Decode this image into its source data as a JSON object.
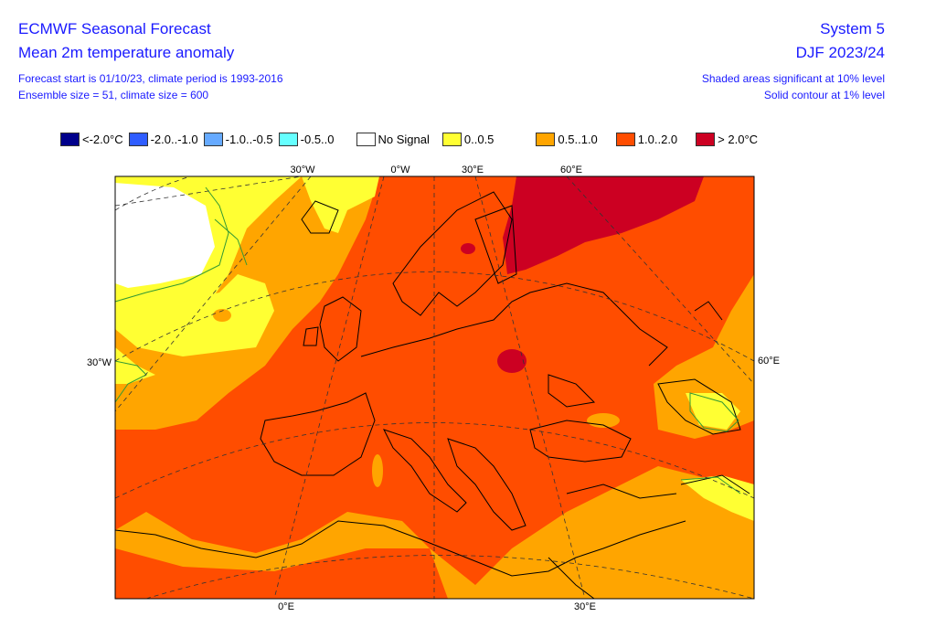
{
  "header": {
    "title": "ECMWF Seasonal Forecast",
    "subtitle": "Mean 2m temperature anomaly",
    "info1": "Forecast start is 01/10/23, climate period is 1993-2016",
    "info2": "Ensemble size = 51, climate size = 600",
    "system": "System 5",
    "season": "DJF 2023/24",
    "note1": "Shaded areas significant at 10% level",
    "note2": "Solid contour at 1% level"
  },
  "legend": [
    {
      "label": "<-2.0°C",
      "color": "#00008b"
    },
    {
      "label": "-2.0..-1.0",
      "color": "#2f5dff"
    },
    {
      "label": "-1.0..-0.5",
      "color": "#66aaff"
    },
    {
      "label": "-0.5..0",
      "color": "#66ffff"
    },
    {
      "label": "No Signal",
      "color": "#ffffff"
    },
    {
      "label": "0..0.5",
      "color": "#ffff33"
    },
    {
      "label": "0.5..1.0",
      "color": "#ffa500"
    },
    {
      "label": "1.0..2.0",
      "color": "#ff4d00"
    },
    {
      "label": "> 2.0°C",
      "color": "#cc0022"
    }
  ],
  "map": {
    "top_labels": [
      "30°W",
      "0°W",
      "30°E",
      "60°E"
    ],
    "left_label": "30°W",
    "right_label": "60°E",
    "bottom_labels": [
      "0°E",
      "30°E"
    ]
  }
}
